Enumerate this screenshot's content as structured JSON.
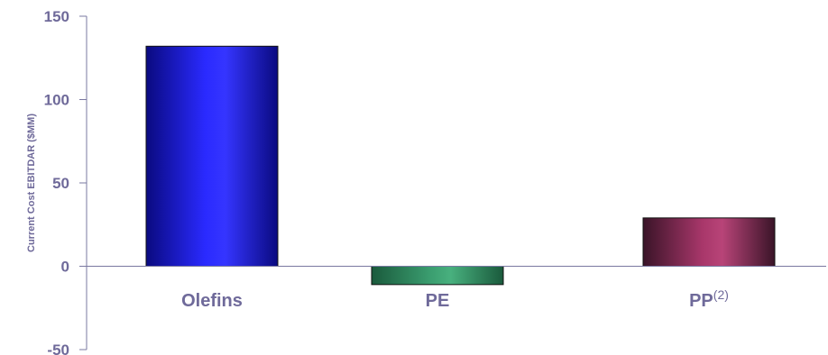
{
  "chart_data": {
    "type": "bar",
    "title": "",
    "xlabel": "",
    "ylabel": "Current Cost EBITDAR ($MM)",
    "ylim": [
      -50,
      150
    ],
    "yticks": [
      "150",
      "100",
      "50",
      "0",
      "-50"
    ],
    "ytick_values": [
      150,
      100,
      50,
      0,
      -50
    ],
    "categories": [
      {
        "label": "Olefins",
        "sup": ""
      },
      {
        "label": "PE",
        "sup": ""
      },
      {
        "label": "PP",
        "sup": "(2)"
      }
    ],
    "values": [
      132,
      -11,
      29
    ],
    "bar_colors": [
      {
        "edge": "#0a0a80",
        "mid": "#2a2aff",
        "light": "#3535ff"
      },
      {
        "edge": "#1a5a3c",
        "mid": "#3b9e70",
        "light": "#48b07e"
      },
      {
        "edge": "#3a1428",
        "mid": "#a8376a",
        "light": "#b84478"
      }
    ],
    "grid": false,
    "legend": "none"
  },
  "colors": {
    "axis": "#7a78a0",
    "text": "#6f6a9a"
  }
}
